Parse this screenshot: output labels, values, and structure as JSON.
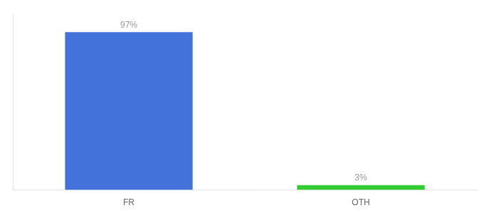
{
  "chart_data": {
    "type": "bar",
    "categories": [
      "FR",
      "OTH"
    ],
    "values": [
      97,
      3
    ],
    "value_labels": [
      "97%",
      "3%"
    ],
    "colors": [
      "#4472db",
      "#33cc33"
    ],
    "ylim": [
      0,
      108
    ],
    "data_labels": true,
    "tick_labels": "x",
    "grid": false
  }
}
